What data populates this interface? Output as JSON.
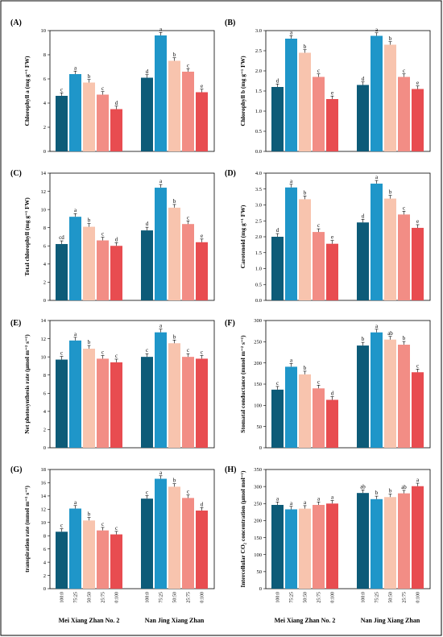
{
  "chart_data": [
    {
      "type": "bar",
      "panel": "(A)",
      "ylabel": "Chlorophyll a (mg g⁻¹ FW)",
      "ylim": [
        0,
        10
      ],
      "yticks": [
        0,
        2,
        4,
        6,
        8,
        10
      ],
      "groups": [
        "Mei Xiang Zhan No. 2",
        "Nan Jing Xiang Zhan"
      ],
      "categories": [
        "100:0",
        "75:25",
        "50:50",
        "25:75",
        "0:100"
      ],
      "values": [
        [
          4.6,
          6.4,
          5.7,
          4.7,
          3.5
        ],
        [
          6.1,
          9.6,
          7.5,
          6.6,
          4.9
        ]
      ],
      "letters": [
        [
          "c",
          "a",
          "b",
          "c",
          "d"
        ],
        [
          "d",
          "a",
          "b",
          "c",
          "e"
        ]
      ]
    },
    {
      "type": "bar",
      "panel": "(B)",
      "ylabel": "Chlorophyll b (mg g⁻¹ FW)",
      "ylim": [
        0,
        3.0
      ],
      "yticks": [
        0.0,
        0.5,
        1.0,
        1.5,
        2.0,
        2.5,
        3.0
      ],
      "groups": [
        "Mei Xiang Zhan No. 2",
        "Nan Jing Xiang Zhan"
      ],
      "categories": [
        "100:0",
        "75:25",
        "50:50",
        "25:75",
        "0:100"
      ],
      "values": [
        [
          1.6,
          2.8,
          2.45,
          1.85,
          1.3
        ],
        [
          1.65,
          2.87,
          2.65,
          1.85,
          1.55
        ]
      ],
      "letters": [
        [
          "d",
          "a",
          "b",
          "c",
          "e"
        ],
        [
          "d",
          "a",
          "b",
          "c",
          "e"
        ]
      ]
    },
    {
      "type": "bar",
      "panel": "(C)",
      "ylabel": "Total chlorophyll (mg g⁻¹ FW)",
      "ylim": [
        0,
        14
      ],
      "yticks": [
        0,
        2,
        4,
        6,
        8,
        10,
        12,
        14
      ],
      "groups": [
        "Mei Xiang Zhan No. 2",
        "Nan Jing Xiang Zhan"
      ],
      "categories": [
        "100:0",
        "75:25",
        "50:50",
        "25:75",
        "0:100"
      ],
      "values": [
        [
          6.2,
          9.2,
          8.1,
          6.6,
          6.0
        ],
        [
          7.7,
          12.4,
          10.2,
          8.4,
          6.4
        ]
      ],
      "letters": [
        [
          "cd",
          "a",
          "b",
          "c",
          "d"
        ],
        [
          "d",
          "a",
          "b",
          "c",
          "e"
        ]
      ]
    },
    {
      "type": "bar",
      "panel": "(D)",
      "ylabel": "Carotenoid (mg g⁻¹ FW)",
      "ylim": [
        0,
        4.0
      ],
      "yticks": [
        0.0,
        0.5,
        1.0,
        1.5,
        2.0,
        2.5,
        3.0,
        3.5,
        4.0
      ],
      "groups": [
        "Mei Xiang Zhan No. 2",
        "Nan Jing Xiang Zhan"
      ],
      "categories": [
        "100:0",
        "75:25",
        "50:50",
        "25:75",
        "0:100"
      ],
      "values": [
        [
          2.0,
          3.55,
          3.18,
          2.15,
          1.78
        ],
        [
          2.45,
          3.67,
          3.2,
          2.7,
          2.28
        ]
      ],
      "letters": [
        [
          "d",
          "a",
          "b",
          "c",
          "e"
        ],
        [
          "d",
          "a",
          "b",
          "c",
          "e"
        ]
      ]
    },
    {
      "type": "bar",
      "panel": "(E)",
      "ylabel": "Net photosynthesis rate (μmol m⁻² s⁻¹)",
      "ylim": [
        0,
        14
      ],
      "yticks": [
        0,
        2,
        4,
        6,
        8,
        10,
        12,
        14
      ],
      "groups": [
        "Mei Xiang Zhan No. 2",
        "Nan Jing Xiang Zhan"
      ],
      "categories": [
        "100:0",
        "75:25",
        "50:50",
        "25:75",
        "0:100"
      ],
      "values": [
        [
          9.7,
          11.8,
          10.9,
          9.8,
          9.4
        ],
        [
          10.0,
          12.7,
          11.5,
          10.0,
          9.8
        ]
      ],
      "letters": [
        [
          "c",
          "a",
          "b",
          "c",
          "c"
        ],
        [
          "c",
          "a",
          "b",
          "c",
          "c"
        ]
      ]
    },
    {
      "type": "bar",
      "panel": "(F)",
      "ylabel": "Stomatal conductance (mmol m⁻² s⁻¹)",
      "ylim": [
        0,
        300
      ],
      "yticks": [
        0,
        50,
        100,
        150,
        200,
        250,
        300
      ],
      "groups": [
        "Mei Xiang Zhan No. 2",
        "Nan Jing Xiang Zhan"
      ],
      "categories": [
        "100:0",
        "75:25",
        "50:50",
        "25:75",
        "0:100"
      ],
      "values": [
        [
          137,
          191,
          173,
          140,
          113
        ],
        [
          241,
          272,
          255,
          243,
          178
        ]
      ],
      "letters": [
        [
          "c",
          "a",
          "b",
          "c",
          "d"
        ],
        [
          "b",
          "a",
          "ab",
          "b",
          "c"
        ]
      ]
    },
    {
      "type": "bar",
      "panel": "(G)",
      "ylabel": "transpiration rate (mmol m⁻² s⁻¹)",
      "ylim": [
        0,
        18
      ],
      "yticks": [
        0,
        2,
        4,
        6,
        8,
        10,
        12,
        14,
        16,
        18
      ],
      "groups": [
        "Mei Xiang Zhan No. 2",
        "Nan Jing Xiang Zhan"
      ],
      "categories": [
        "100:0",
        "75:25",
        "50:50",
        "25:75",
        "0:100"
      ],
      "values": [
        [
          8.6,
          12.1,
          10.3,
          8.8,
          8.2
        ],
        [
          13.6,
          16.6,
          15.4,
          13.7,
          11.8
        ]
      ],
      "letters": [
        [
          "c",
          "a",
          "b",
          "c",
          "c"
        ],
        [
          "c",
          "a",
          "b",
          "c",
          "d"
        ]
      ]
    },
    {
      "type": "bar",
      "panel": "(H)",
      "ylabel": "Intercellular CO₂ concentration (μmol mol⁻¹)",
      "ylim": [
        0,
        350
      ],
      "yticks": [
        0,
        50,
        100,
        150,
        200,
        250,
        300,
        350
      ],
      "groups": [
        "Mei Xiang Zhan No. 2",
        "Nan Jing Xiang Zhan"
      ],
      "categories": [
        "100:0",
        "75:25",
        "50:50",
        "25:75",
        "0:100"
      ],
      "values": [
        [
          246,
          233,
          235,
          246,
          250
        ],
        [
          281,
          263,
          269,
          280,
          301
        ]
      ],
      "letters": [
        [
          "a",
          "a",
          "a",
          "a",
          "a"
        ],
        [
          "ab",
          "b",
          "b",
          "ab",
          "a"
        ]
      ]
    }
  ],
  "colors": [
    "#0d5b78",
    "#1f96c9",
    "#f8c4ae",
    "#f28d85",
    "#e84c50"
  ]
}
